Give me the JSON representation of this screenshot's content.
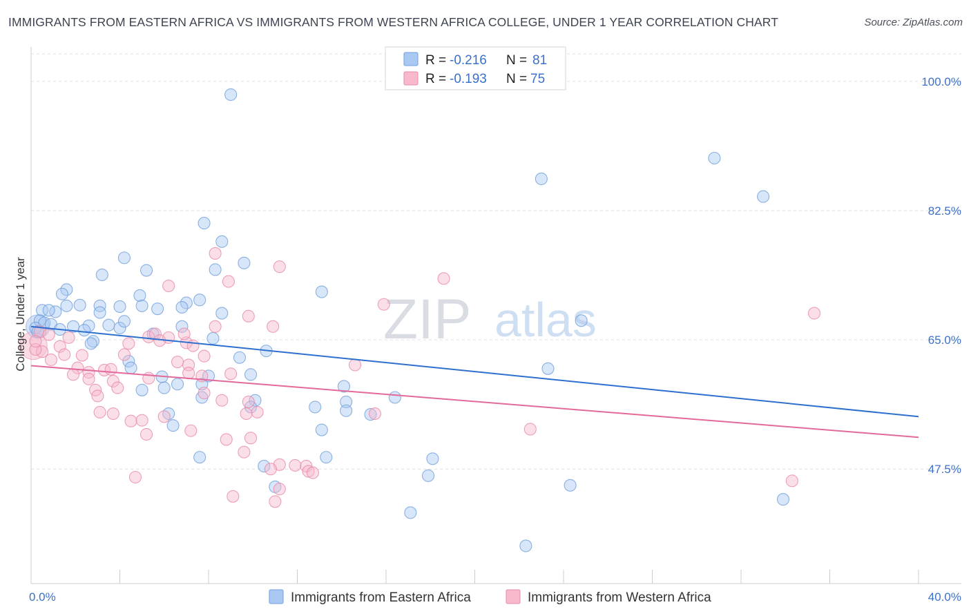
{
  "chart_data": {
    "type": "scatter",
    "title": "IMMIGRANTS FROM EASTERN AFRICA VS IMMIGRANTS FROM WESTERN AFRICA COLLEGE, UNDER 1 YEAR CORRELATION CHART",
    "source": "Source: ZipAtlas.com",
    "ylabel": "College, Under 1 year",
    "xlabel": "",
    "xlim": [
      0,
      40
    ],
    "ylim": [
      32,
      104
    ],
    "x_tick_labels": [
      {
        "value": 0,
        "label": "0.0%"
      },
      {
        "value": 40,
        "label": "40.0%"
      }
    ],
    "y_tick_labels": [
      {
        "value": 100,
        "label": "100.0%"
      },
      {
        "value": 82.5,
        "label": "82.5%"
      },
      {
        "value": 65,
        "label": "65.0%"
      },
      {
        "value": 47.5,
        "label": "47.5%"
      }
    ],
    "grid": "horizontal dashed",
    "legend_position": "top-center",
    "watermark": "ZIPatlas",
    "colors": {
      "blue_fill": "#a9c8f2",
      "blue_stroke": "#6f9fdc",
      "blue_line": "#2d6fcf",
      "pink_fill": "#f7b9cb",
      "pink_stroke": "#e88aa7",
      "pink_line": "#e3699a",
      "value_text": "#3b70c9"
    },
    "legend": [
      {
        "r_label": "R =",
        "r_value": "-0.216",
        "n_label": "N =",
        "n_value": "81",
        "color": "blue"
      },
      {
        "r_label": "R =",
        "r_value": "-0.193",
        "n_label": "N =",
        "n_value": "75",
        "color": "pink"
      }
    ],
    "series": [
      {
        "name": "Immigrants from Eastern Africa",
        "color": "blue",
        "trend": {
          "x0": 0,
          "y0": 66.8,
          "x1": 40,
          "y1": 54.6
        },
        "points": [
          [
            9.0,
            98.2
          ],
          [
            30.8,
            89.6
          ],
          [
            23.0,
            86.8
          ],
          [
            33.0,
            84.4
          ],
          [
            7.8,
            80.8
          ],
          [
            8.6,
            78.3
          ],
          [
            4.2,
            76.1
          ],
          [
            9.6,
            75.4
          ],
          [
            5.2,
            74.4
          ],
          [
            8.3,
            74.5
          ],
          [
            3.2,
            73.8
          ],
          [
            1.6,
            71.8
          ],
          [
            1.4,
            71.2
          ],
          [
            4.9,
            71.0
          ],
          [
            13.1,
            71.5
          ],
          [
            7.6,
            70.4
          ],
          [
            7.0,
            70.0
          ],
          [
            1.6,
            69.6
          ],
          [
            2.2,
            69.7
          ],
          [
            3.1,
            69.6
          ],
          [
            4.0,
            69.5
          ],
          [
            5.0,
            69.6
          ],
          [
            5.7,
            69.2
          ],
          [
            6.8,
            69.4
          ],
          [
            0.5,
            69.0
          ],
          [
            1.1,
            68.8
          ],
          [
            0.8,
            69.0
          ],
          [
            3.1,
            68.7
          ],
          [
            8.6,
            68.6
          ],
          [
            24.8,
            67.6
          ],
          [
            0.4,
            67.6
          ],
          [
            0.6,
            67.3
          ],
          [
            0.9,
            67.1
          ],
          [
            1.9,
            66.8
          ],
          [
            2.6,
            66.9
          ],
          [
            3.5,
            67.0
          ],
          [
            4.0,
            66.6
          ],
          [
            4.2,
            67.5
          ],
          [
            6.8,
            66.8
          ],
          [
            0.2,
            66.6
          ],
          [
            1.3,
            66.4
          ],
          [
            2.4,
            66.3
          ],
          [
            5.5,
            65.8
          ],
          [
            8.2,
            65.2
          ],
          [
            2.8,
            64.8
          ],
          [
            2.7,
            64.5
          ],
          [
            10.6,
            63.5
          ],
          [
            9.4,
            62.6
          ],
          [
            4.4,
            62.1
          ],
          [
            4.5,
            61.2
          ],
          [
            23.3,
            61.1
          ],
          [
            9.9,
            60.3
          ],
          [
            5.9,
            60.0
          ],
          [
            6.6,
            59.0
          ],
          [
            7.7,
            59.0
          ],
          [
            14.1,
            58.7
          ],
          [
            6.0,
            58.5
          ],
          [
            8.0,
            60.1
          ],
          [
            5.0,
            58.2
          ],
          [
            7.7,
            57.2
          ],
          [
            16.4,
            57.2
          ],
          [
            10.1,
            56.8
          ],
          [
            14.2,
            56.6
          ],
          [
            12.8,
            55.9
          ],
          [
            14.2,
            55.4
          ],
          [
            15.3,
            54.9
          ],
          [
            6.2,
            55.0
          ],
          [
            9.9,
            55.9
          ],
          [
            6.4,
            53.4
          ],
          [
            13.1,
            52.8
          ],
          [
            7.6,
            49.1
          ],
          [
            13.3,
            49.1
          ],
          [
            18.1,
            48.9
          ],
          [
            10.5,
            47.9
          ],
          [
            17.9,
            46.6
          ],
          [
            11.0,
            45.1
          ],
          [
            24.3,
            45.3
          ],
          [
            33.9,
            43.4
          ],
          [
            17.1,
            41.6
          ],
          [
            22.3,
            37.1
          ],
          [
            0.3,
            66.1
          ]
        ]
      },
      {
        "name": "Immigrants from Western Africa",
        "color": "pink",
        "trend": {
          "x0": 0,
          "y0": 61.5,
          "x1": 40,
          "y1": 51.8
        },
        "points": [
          [
            8.3,
            76.7
          ],
          [
            11.2,
            74.9
          ],
          [
            18.6,
            73.3
          ],
          [
            8.9,
            72.9
          ],
          [
            6.2,
            72.3
          ],
          [
            15.9,
            69.8
          ],
          [
            35.3,
            68.6
          ],
          [
            9.8,
            68.2
          ],
          [
            10.9,
            66.8
          ],
          [
            8.3,
            66.8
          ],
          [
            0.4,
            66.1
          ],
          [
            0.8,
            65.7
          ],
          [
            1.7,
            65.3
          ],
          [
            5.3,
            65.4
          ],
          [
            5.6,
            65.8
          ],
          [
            5.8,
            64.9
          ],
          [
            6.2,
            65.3
          ],
          [
            7.0,
            64.6
          ],
          [
            7.3,
            64.2
          ],
          [
            4.4,
            64.5
          ],
          [
            1.3,
            64.1
          ],
          [
            0.5,
            63.4
          ],
          [
            1.5,
            63.0
          ],
          [
            2.3,
            62.9
          ],
          [
            4.2,
            63.0
          ],
          [
            7.8,
            62.8
          ],
          [
            0.2,
            63.7
          ],
          [
            0.9,
            62.3
          ],
          [
            6.6,
            62.0
          ],
          [
            7.1,
            61.6
          ],
          [
            14.6,
            61.6
          ],
          [
            2.1,
            61.2
          ],
          [
            3.3,
            60.9
          ],
          [
            3.6,
            61.0
          ],
          [
            2.6,
            60.6
          ],
          [
            1.9,
            60.3
          ],
          [
            7.1,
            60.5
          ],
          [
            9.0,
            60.4
          ],
          [
            2.6,
            59.7
          ],
          [
            3.7,
            59.4
          ],
          [
            5.3,
            59.8
          ],
          [
            7.7,
            60.1
          ],
          [
            3.9,
            58.5
          ],
          [
            7.8,
            57.8
          ],
          [
            2.9,
            58.2
          ],
          [
            3.0,
            57.4
          ],
          [
            8.6,
            56.8
          ],
          [
            9.8,
            56.6
          ],
          [
            3.1,
            55.2
          ],
          [
            3.7,
            55.0
          ],
          [
            9.7,
            55.0
          ],
          [
            10.2,
            55.2
          ],
          [
            15.5,
            55.0
          ],
          [
            6.0,
            54.6
          ],
          [
            4.5,
            54.0
          ],
          [
            5.0,
            54.1
          ],
          [
            22.5,
            52.9
          ],
          [
            7.2,
            52.7
          ],
          [
            9.9,
            51.7
          ],
          [
            5.2,
            52.2
          ],
          [
            8.8,
            51.5
          ],
          [
            9.6,
            49.8
          ],
          [
            11.2,
            48.1
          ],
          [
            11.9,
            48.0
          ],
          [
            12.4,
            47.9
          ],
          [
            10.8,
            47.5
          ],
          [
            12.5,
            47.2
          ],
          [
            12.7,
            47.0
          ],
          [
            4.7,
            46.4
          ],
          [
            34.3,
            45.9
          ],
          [
            11.2,
            44.8
          ],
          [
            9.1,
            43.8
          ],
          [
            11.0,
            43.1
          ],
          [
            0.2,
            64.8
          ],
          [
            6.9,
            65.8
          ]
        ]
      }
    ],
    "legend_bottom": [
      {
        "label": "Immigrants from Eastern Africa",
        "color": "blue"
      },
      {
        "label": "Immigrants from Western Africa",
        "color": "pink"
      }
    ]
  }
}
